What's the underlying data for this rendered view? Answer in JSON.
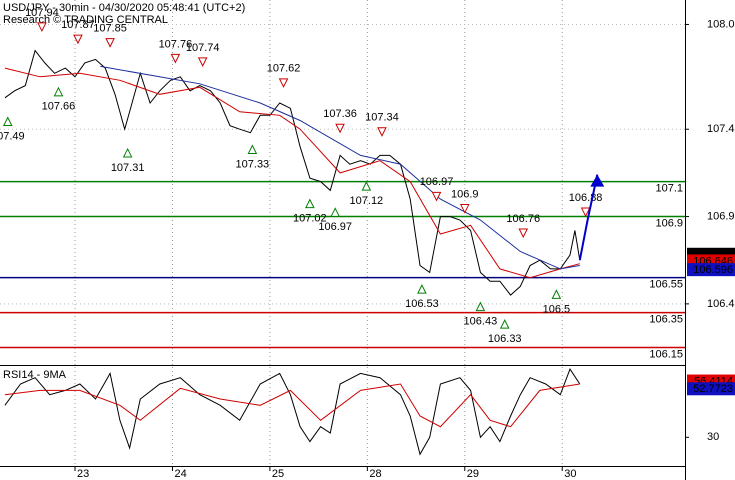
{
  "chart_data": [
    {
      "type": "line",
      "title": "USD/JPY - 30min - 04/30/2020 05:48:41 (UTC+2)",
      "subtitle": "Research © TRADING CENTRAL",
      "xlim": [
        -0.77,
        6.26
      ],
      "ylim": [
        106.05,
        108.14
      ],
      "yticks": [
        {
          "value": 108.0,
          "label": "108.0"
        },
        107.4,
        106.9,
        106.4
      ],
      "grid": true,
      "series": [
        {
          "color": "#000000",
          "x": [
            -0.72,
            -0.62,
            -0.51,
            -0.41,
            -0.31,
            -0.21,
            -0.1,
            0,
            0.1,
            0.21,
            0.31,
            0.41,
            0.51,
            0.56,
            0.67,
            0.77,
            0.87,
            0.98,
            1.08,
            1.18,
            1.28,
            1.39,
            1.49,
            1.59,
            1.69,
            1.8,
            1.9,
            2.0,
            2.1,
            2.21,
            2.31,
            2.41,
            2.52,
            2.62,
            2.72,
            2.82,
            2.93,
            3.03,
            3.13,
            3.23,
            3.34,
            3.44,
            3.54,
            3.64,
            3.75,
            3.85,
            3.95,
            4.06,
            4.16,
            4.26,
            4.36,
            4.47,
            4.57,
            4.67,
            4.77,
            4.88,
            4.98,
            5.08,
            5.13,
            5.18
          ],
          "values": [
            107.58,
            107.62,
            107.65,
            107.85,
            107.78,
            107.72,
            107.75,
            107.7,
            107.78,
            107.8,
            107.75,
            107.6,
            107.4,
            107.5,
            107.72,
            107.55,
            107.62,
            107.68,
            107.7,
            107.62,
            107.65,
            107.62,
            107.55,
            107.42,
            107.4,
            107.38,
            107.48,
            107.48,
            107.55,
            107.52,
            107.3,
            107.12,
            107.1,
            107.05,
            107.25,
            107.2,
            107.22,
            107.2,
            107.25,
            107.25,
            107.2,
            107.0,
            106.62,
            106.58,
            106.9,
            106.9,
            106.88,
            106.82,
            106.58,
            106.53,
            106.53,
            106.45,
            106.5,
            106.62,
            106.65,
            106.6,
            106.6,
            106.68,
            106.82,
            106.65
          ]
        },
        {
          "color": "#d00000",
          "x": [
            -0.72,
            -0.36,
            0.05,
            0.46,
            0.87,
            1.28,
            1.69,
            2.1,
            2.31,
            2.72,
            3.13,
            3.44,
            3.75,
            4.06,
            4.36,
            4.67,
            4.98,
            5.18
          ],
          "values": [
            107.75,
            107.7,
            107.72,
            107.68,
            107.6,
            107.64,
            107.5,
            107.48,
            107.4,
            107.15,
            107.22,
            107.1,
            106.8,
            106.85,
            106.6,
            106.55,
            106.6,
            106.63
          ]
        },
        {
          "color": "#1f2f9f",
          "x": [
            0.26,
            1.28,
            1.9,
            2.31,
            2.93,
            3.34,
            3.75,
            4.16,
            4.57,
            4.98,
            5.18
          ],
          "values": [
            107.76,
            107.66,
            107.55,
            107.45,
            107.25,
            107.2,
            107.0,
            106.88,
            106.7,
            106.6,
            106.62
          ]
        }
      ],
      "annotations": [
        {
          "value": 107.49,
          "x": -0.69,
          "kind": "low"
        },
        {
          "value": 107.94,
          "x": -0.34,
          "kind": "high"
        },
        {
          "value": 107.66,
          "x": -0.17,
          "kind": "low"
        },
        {
          "value": 107.87,
          "x": 0.03,
          "kind": "high"
        },
        {
          "value": 107.85,
          "x": 0.36,
          "kind": "high"
        },
        {
          "value": 107.31,
          "x": 0.54,
          "kind": "low"
        },
        {
          "value": 107.76,
          "x": 1.03,
          "kind": "high"
        },
        {
          "value": 107.74,
          "x": 1.31,
          "kind": "high"
        },
        {
          "value": 107.33,
          "x": 1.82,
          "kind": "low"
        },
        {
          "value": 107.62,
          "x": 2.14,
          "kind": "high"
        },
        {
          "value": 107.02,
          "x": 2.41,
          "kind": "low"
        },
        {
          "value": 106.97,
          "x": 2.67,
          "kind": "low"
        },
        {
          "value": 107.36,
          "x": 2.72,
          "kind": "high"
        },
        {
          "value": 107.12,
          "x": 2.99,
          "kind": "low"
        },
        {
          "value": 107.34,
          "x": 3.15,
          "kind": "high"
        },
        {
          "value": 106.53,
          "x": 3.56,
          "kind": "low"
        },
        {
          "value": 106.97,
          "x": 3.71,
          "kind": "high"
        },
        {
          "value": 106.9,
          "x": 4.0,
          "kind": "high"
        },
        {
          "value": 106.43,
          "x": 4.16,
          "kind": "low"
        },
        {
          "value": 106.33,
          "x": 4.41,
          "kind": "low"
        },
        {
          "value": 106.76,
          "x": 4.6,
          "kind": "high"
        },
        {
          "value": 106.5,
          "x": 4.94,
          "kind": "low"
        },
        {
          "value": 106.88,
          "x": 5.24,
          "kind": "high"
        }
      ],
      "levels": [
        {
          "value": 107.1,
          "color": "#008000"
        },
        {
          "value": 106.9,
          "color": "#008000"
        },
        {
          "value": 106.55,
          "color": "#000080"
        },
        {
          "value": 106.35,
          "color": "#cc0000"
        },
        {
          "value": 106.15,
          "color": "#cc0000"
        }
      ],
      "price_tags": [
        {
          "value": 106.684,
          "color": "#000000"
        },
        {
          "value": 106.646,
          "color": "#e00000"
        },
        {
          "value": 106.596,
          "color": "#1010c0"
        }
      ],
      "arrow": {
        "color": "#0000cc",
        "x": [
          5.18,
          5.26,
          5.36
        ],
        "values": [
          106.65,
          106.88,
          107.14
        ]
      }
    },
    {
      "type": "line",
      "title": "RSI14 - 9MA",
      "xlim": [
        -0.77,
        6.26
      ],
      "xticks": [
        {
          "value": 0,
          "label": "23"
        },
        {
          "value": 1,
          "label": "24"
        },
        {
          "value": 2,
          "label": "25"
        },
        {
          "value": 3,
          "label": "28"
        },
        {
          "value": 4,
          "label": "29"
        },
        {
          "value": 5,
          "label": "30"
        }
      ],
      "ylim": [
        17,
        63
      ],
      "yticks": [
        30
      ],
      "series": [
        {
          "color": "#000000",
          "x": [
            -0.72,
            -0.56,
            -0.41,
            -0.26,
            -0.1,
            0.05,
            0.21,
            0.36,
            0.46,
            0.56,
            0.67,
            0.87,
            1.08,
            1.28,
            1.49,
            1.69,
            1.9,
            2.1,
            2.21,
            2.31,
            2.41,
            2.52,
            2.62,
            2.72,
            2.93,
            3.13,
            3.34,
            3.44,
            3.54,
            3.64,
            3.75,
            3.95,
            4.06,
            4.16,
            4.26,
            4.36,
            4.47,
            4.57,
            4.67,
            4.83,
            4.98,
            5.08,
            5.18
          ],
          "values": [
            45,
            55,
            58,
            50,
            52,
            55,
            48,
            60,
            38,
            25,
            48,
            55,
            58,
            50,
            45,
            38,
            55,
            60,
            50,
            35,
            28,
            35,
            32,
            55,
            60,
            58,
            50,
            40,
            22,
            30,
            55,
            58,
            52,
            30,
            35,
            28,
            40,
            50,
            58,
            55,
            50,
            62,
            55
          ]
        },
        {
          "color": "#d00000",
          "x": [
            -0.72,
            -0.36,
            0.05,
            0.46,
            0.67,
            1.08,
            1.49,
            1.9,
            2.21,
            2.52,
            2.93,
            3.34,
            3.54,
            3.75,
            4.06,
            4.26,
            4.47,
            4.77,
            5.18
          ],
          "values": [
            50,
            52,
            52,
            45,
            38,
            53,
            48,
            45,
            52,
            38,
            52,
            55,
            40,
            35,
            50,
            38,
            35,
            52,
            55
          ]
        }
      ],
      "price_tags": [
        {
          "value": 56.4114,
          "color": "#e00000"
        },
        {
          "value": 52.7723,
          "color": "#1010c0"
        }
      ]
    }
  ]
}
